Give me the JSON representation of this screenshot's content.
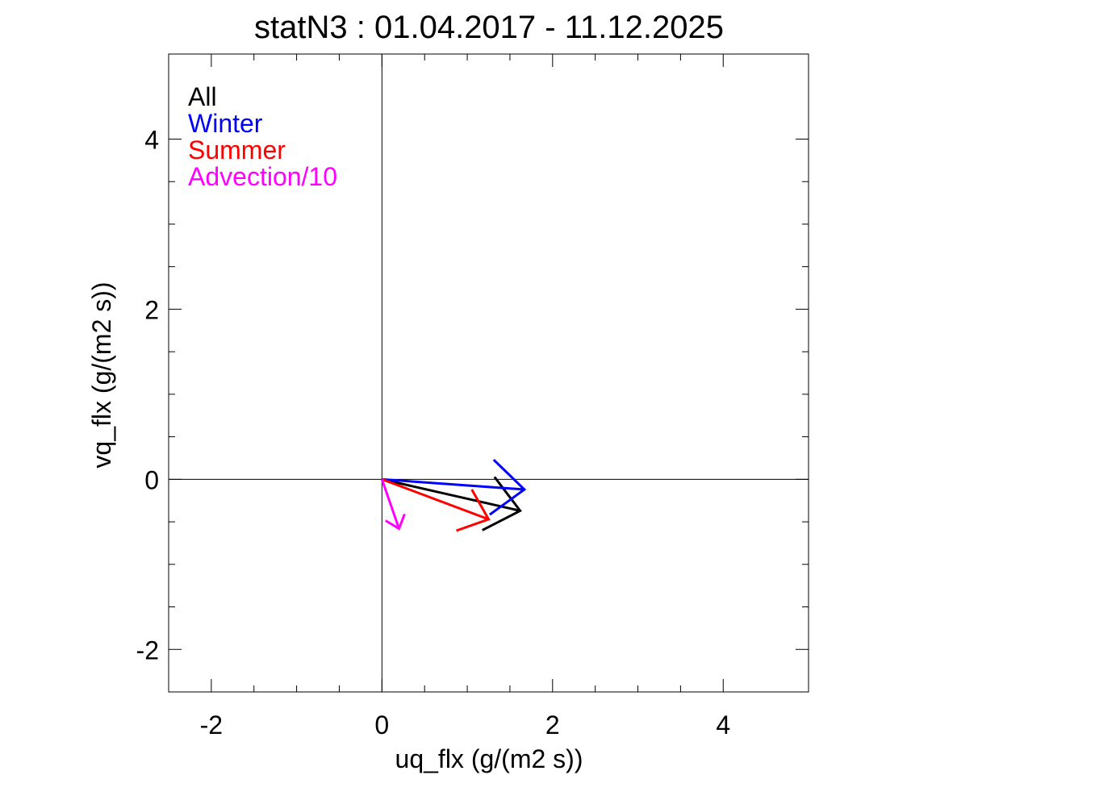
{
  "chart_data": {
    "type": "vector",
    "title": "statN3 : 01.04.2017 - 11.12.2025",
    "xlabel": "uq_flx (g/(m2 s))",
    "ylabel": "vq_flx (g/(m2 s))",
    "xlim": [
      -2.5,
      5.0
    ],
    "ylim": [
      -2.5,
      5.0
    ],
    "xticks": [
      -2,
      0,
      2,
      4
    ],
    "yticks": [
      -2,
      0,
      2,
      4
    ],
    "xtick_labels": [
      "-2",
      "0",
      "2",
      "4"
    ],
    "ytick_labels": [
      "-2",
      "0",
      "2",
      "4"
    ],
    "grid": false,
    "zero_lines": true,
    "legend_placement": "top-left",
    "series": [
      {
        "name": "All",
        "color": "#000000",
        "u": 1.62,
        "v": -0.37
      },
      {
        "name": "Winter",
        "color": "#0000ff",
        "u": 1.67,
        "v": -0.12
      },
      {
        "name": "Summer",
        "color": "#ff0000",
        "u": 1.25,
        "v": -0.47
      },
      {
        "name": "Advection/10",
        "color": "#ff00ff",
        "u": 0.2,
        "v": -0.58
      }
    ]
  }
}
